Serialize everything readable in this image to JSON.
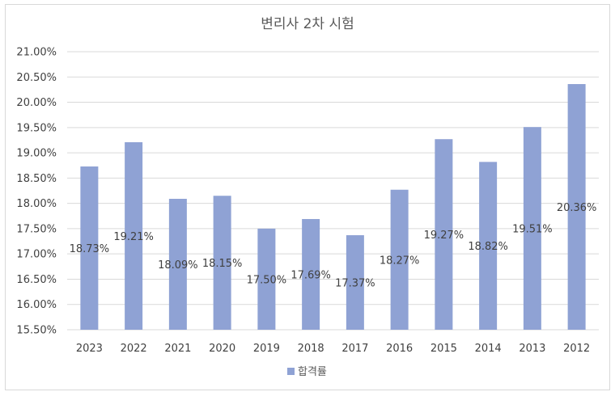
{
  "chart_data": {
    "type": "bar",
    "title": "변리사 2차 시험",
    "categories": [
      "2023",
      "2022",
      "2021",
      "2020",
      "2019",
      "2018",
      "2017",
      "2016",
      "2015",
      "2014",
      "2013",
      "2012"
    ],
    "series": [
      {
        "name": "합격률",
        "values": [
          18.73,
          19.21,
          18.09,
          18.15,
          17.5,
          17.69,
          17.37,
          18.27,
          19.27,
          18.82,
          19.51,
          20.36
        ]
      }
    ],
    "data_labels": [
      "18.73%",
      "19.21%",
      "18.09%",
      "18.15%",
      "17.50%",
      "17.69%",
      "17.37%",
      "18.27%",
      "19.27%",
      "18.82%",
      "19.51%",
      "20.36%"
    ],
    "ylim": [
      15.5,
      21.0
    ],
    "yticks": [
      15.5,
      16.0,
      16.5,
      17.0,
      17.5,
      18.0,
      18.5,
      19.0,
      19.5,
      20.0,
      20.5,
      21.0
    ],
    "ytick_labels": [
      "15.50%",
      "16.00%",
      "16.50%",
      "17.00%",
      "17.50%",
      "18.00%",
      "18.50%",
      "19.00%",
      "19.50%",
      "20.00%",
      "20.50%",
      "21.00%"
    ],
    "grid": true,
    "legend": "bottom",
    "colors": {
      "bar": "#8fa2d4"
    }
  }
}
